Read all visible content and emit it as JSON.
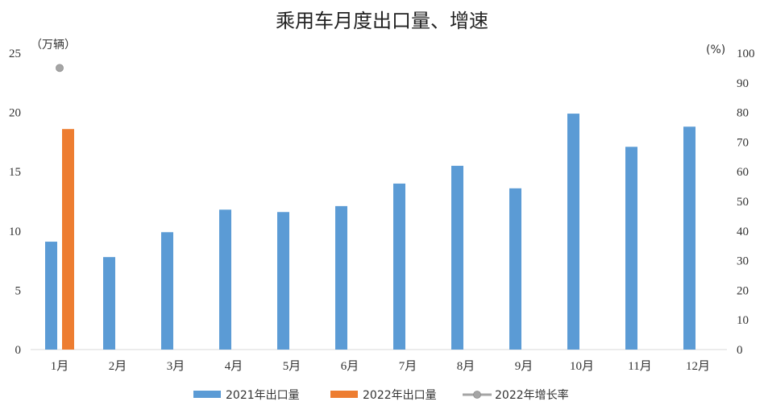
{
  "chart_data": {
    "type": "bar",
    "title": "乘用车月度出口量、增速",
    "categories": [
      "1月",
      "2月",
      "3月",
      "4月",
      "5月",
      "6月",
      "7月",
      "8月",
      "9月",
      "10月",
      "11月",
      "12月"
    ],
    "series": [
      {
        "name": "2021年出口量",
        "axis": "left",
        "kind": "bar",
        "color": "#5B9BD5",
        "values": [
          9.1,
          7.8,
          9.9,
          11.8,
          11.6,
          12.1,
          14.0,
          15.5,
          13.6,
          19.9,
          17.1,
          18.8
        ]
      },
      {
        "name": "2022年出口量",
        "axis": "left",
        "kind": "bar",
        "color": "#ED7D31",
        "values": [
          18.6,
          null,
          null,
          null,
          null,
          null,
          null,
          null,
          null,
          null,
          null,
          null
        ]
      },
      {
        "name": "2022年增长率",
        "axis": "right",
        "kind": "line",
        "color": "#A5A5A5",
        "values": [
          95,
          null,
          null,
          null,
          null,
          null,
          null,
          null,
          null,
          null,
          null,
          null
        ]
      }
    ],
    "left_axis": {
      "unit": "（万辆）",
      "ylim": [
        0,
        25
      ],
      "ticks": [
        0,
        5,
        10,
        15,
        20,
        25
      ]
    },
    "right_axis": {
      "unit": "(%)",
      "ylim": [
        0,
        100
      ],
      "ticks": [
        0,
        10,
        20,
        30,
        40,
        50,
        60,
        70,
        80,
        90,
        100
      ]
    },
    "legend_position": "bottom"
  }
}
